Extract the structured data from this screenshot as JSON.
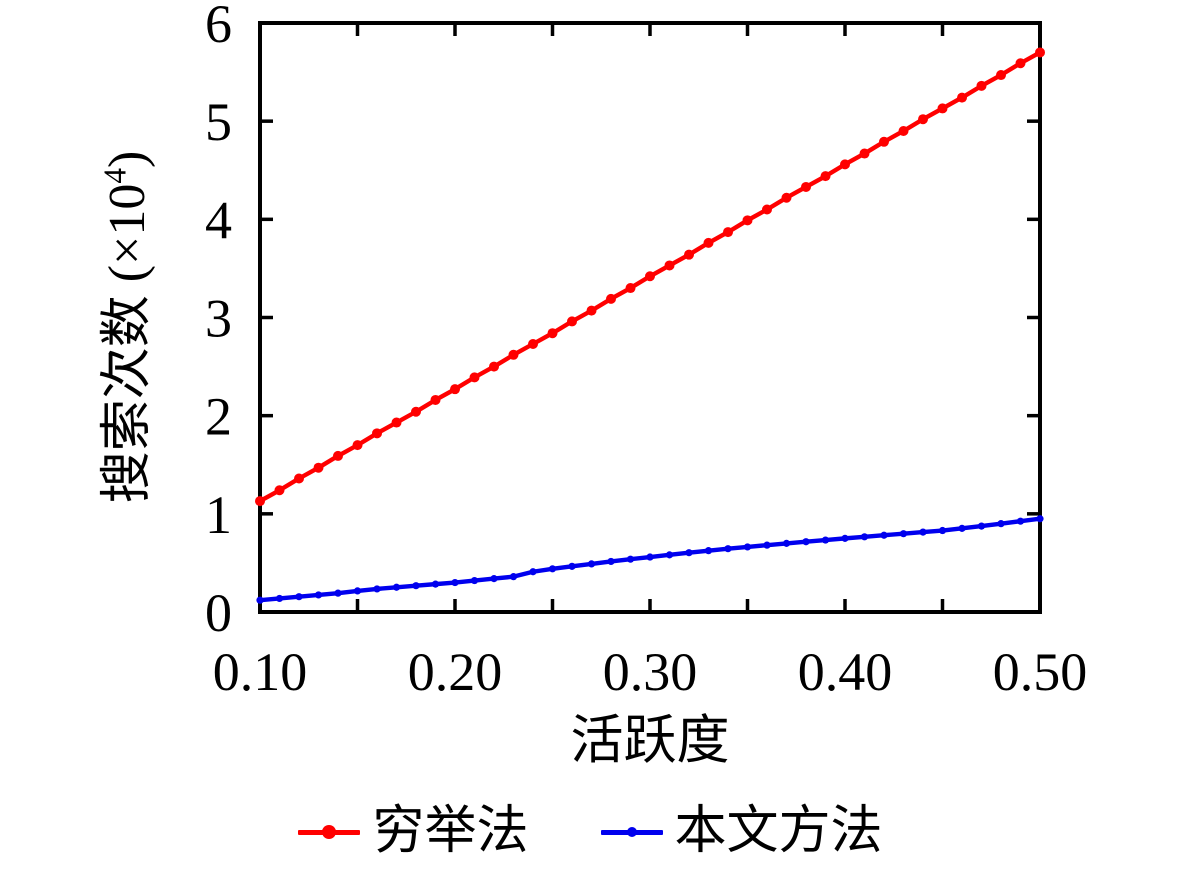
{
  "chart_data": {
    "type": "line",
    "title": "",
    "xlabel": "活跃度",
    "ylabel": "搜索次数 (×10⁴)",
    "ylabel_parts": {
      "prefix": "搜索次数 (×10",
      "sup": "4",
      "suffix": ")"
    },
    "xlim": [
      0.1,
      0.5
    ],
    "ylim": [
      0,
      6
    ],
    "x_ticks": [
      0.1,
      0.15,
      0.2,
      0.25,
      0.3,
      0.35,
      0.4,
      0.45,
      0.5
    ],
    "x_labeled_ticks": [
      0.1,
      0.2,
      0.3,
      0.4,
      0.5
    ],
    "x_tick_labels": [
      "0.10",
      "0.20",
      "0.30",
      "0.40",
      "0.50"
    ],
    "y_ticks": [
      0,
      1,
      2,
      3,
      4,
      5,
      6
    ],
    "y_tick_labels": [
      "0",
      "1",
      "2",
      "3",
      "4",
      "5",
      "6"
    ],
    "grid": false,
    "frame": "box-with-mirrored-inward-ticks",
    "legend_position": "bottom-center",
    "x": [
      0.1,
      0.11,
      0.12,
      0.13,
      0.14,
      0.15,
      0.16,
      0.17,
      0.18,
      0.19,
      0.2,
      0.21,
      0.22,
      0.23,
      0.24,
      0.25,
      0.26,
      0.27,
      0.28,
      0.29,
      0.3,
      0.31,
      0.32,
      0.33,
      0.34,
      0.35,
      0.36,
      0.37,
      0.38,
      0.39,
      0.4,
      0.41,
      0.42,
      0.43,
      0.44,
      0.45,
      0.46,
      0.47,
      0.48,
      0.49,
      0.5
    ],
    "series": [
      {
        "name": "穷举法",
        "color": "#ff0000",
        "marker": "circle",
        "marker_radius": 5,
        "line_width": 4.4,
        "values": [
          1.13,
          1.24,
          1.36,
          1.47,
          1.59,
          1.7,
          1.82,
          1.93,
          2.04,
          2.16,
          2.27,
          2.39,
          2.5,
          2.62,
          2.73,
          2.84,
          2.96,
          3.07,
          3.19,
          3.3,
          3.42,
          3.53,
          3.64,
          3.76,
          3.87,
          3.99,
          4.1,
          4.22,
          4.33,
          4.44,
          4.56,
          4.67,
          4.79,
          4.9,
          5.02,
          5.13,
          5.24,
          5.36,
          5.47,
          5.59,
          5.7
        ]
      },
      {
        "name": "本文方法",
        "color": "#0000ee",
        "marker": "circle",
        "marker_radius": 3.6,
        "line_width": 4.4,
        "values": [
          0.12,
          0.138,
          0.156,
          0.174,
          0.192,
          0.215,
          0.235,
          0.252,
          0.268,
          0.284,
          0.3,
          0.32,
          0.34,
          0.36,
          0.41,
          0.44,
          0.465,
          0.49,
          0.515,
          0.538,
          0.56,
          0.582,
          0.604,
          0.625,
          0.645,
          0.663,
          0.681,
          0.699,
          0.716,
          0.733,
          0.75,
          0.766,
          0.782,
          0.798,
          0.814,
          0.83,
          0.852,
          0.875,
          0.9,
          0.925,
          0.95
        ]
      }
    ]
  },
  "legend": {
    "items": [
      {
        "label": "穷举法",
        "color": "#ff0000"
      },
      {
        "label": "本文方法",
        "color": "#0000ee"
      }
    ]
  },
  "style": {
    "axis_color": "#000000",
    "background": "#ffffff"
  }
}
